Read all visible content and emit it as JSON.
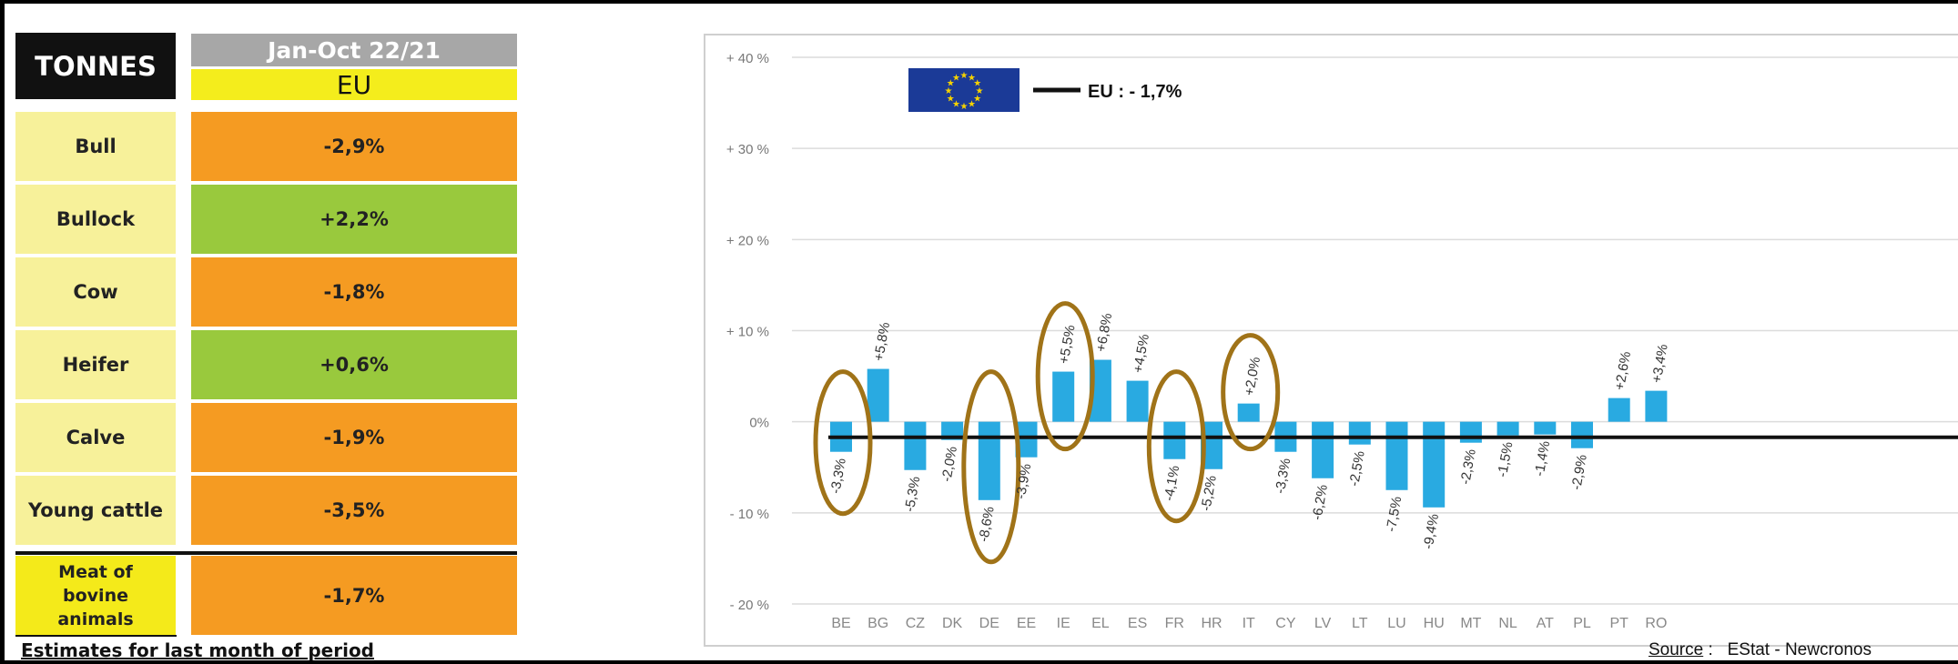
{
  "table": {
    "header_label": "TONNES",
    "period": "Jan-Oct 22/21",
    "region": "EU",
    "rows": [
      {
        "label": "Bull",
        "value": "-2,9%",
        "status": "decrease"
      },
      {
        "label": "Bullock",
        "value": "+2,2%",
        "status": "increase"
      },
      {
        "label": "Cow",
        "value": "-1,8%",
        "status": "decrease"
      },
      {
        "label": "Heifer",
        "value": "+0,6%",
        "status": "increase"
      },
      {
        "label": "Calve",
        "value": "-1,9%",
        "status": "decrease"
      },
      {
        "label": "Young cattle",
        "value": "-3,5%",
        "status": "decrease"
      }
    ],
    "total": {
      "label": "Meat of bovine animals",
      "value": "-1,7%",
      "status": "decrease"
    },
    "footnote": "Estimates for last month of period",
    "colors": {
      "decrease": "#f59b22",
      "increase": "#99c93d",
      "label_bg": "#f7f19a",
      "total_label_bg": "#f4ea1a"
    }
  },
  "chart_data": {
    "type": "bar",
    "categories": [
      "BE",
      "BG",
      "CZ",
      "DK",
      "DE",
      "EE",
      "IE",
      "EL",
      "ES",
      "FR",
      "HR",
      "IT",
      "CY",
      "LV",
      "LT",
      "LU",
      "HU",
      "MT",
      "NL",
      "AT",
      "PL",
      "PT",
      "RO"
    ],
    "values": [
      -3.3,
      5.8,
      -5.3,
      -2.0,
      -8.6,
      -3.9,
      5.5,
      6.8,
      4.5,
      -4.1,
      -5.2,
      2.0,
      -3.3,
      -6.2,
      -2.5,
      -7.5,
      -9.4,
      -2.3,
      -1.5,
      -1.4,
      -2.9,
      2.6,
      3.4
    ],
    "data_labels": [
      "-3,3%",
      "+5,8%",
      "-5,3%",
      "-2,0%",
      "-8,6%",
      "-3,9%",
      "+5,5%",
      "+6,8%",
      "+4,5%",
      "-4,1%",
      "-5,2%",
      "+2,0%",
      "-3,3%",
      "-6,2%",
      "-2,5%",
      "-7,5%",
      "-9,4%",
      "-2,3%",
      "-1,5%",
      "-1,4%",
      "-2,9%",
      "+2,6%",
      "+3,4%"
    ],
    "ylim": [
      -20,
      40
    ],
    "yticks": [
      40,
      30,
      20,
      10,
      0,
      -10,
      -20
    ],
    "ytick_labels": [
      "+ 40 %",
      "+ 30 %",
      "+ 20 %",
      "+ 10 %",
      "0%",
      "- 10 %",
      "- 20 %"
    ],
    "reference_line": {
      "value": -1.7,
      "label": "EU :  - 1,7%"
    },
    "highlighted": [
      "BE",
      "DE",
      "IE",
      "FR",
      "IT"
    ],
    "bar_color": "#29aae1",
    "highlight_color": "#a07318",
    "grid": true,
    "legend_position": "top-left"
  },
  "source": {
    "label": "Source",
    "separator": " :",
    "text": "EStat - Newcronos"
  }
}
